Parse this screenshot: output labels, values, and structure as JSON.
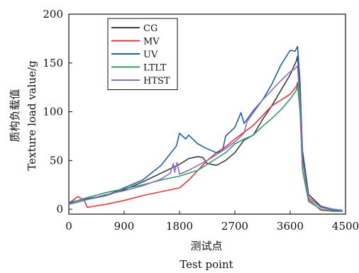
{
  "chart_data": {
    "type": "line",
    "xlabel_cn": "测试点",
    "xlabel": "Test point",
    "ylabel_cn": "质构负载值",
    "ylabel": "Texture load value/g",
    "xlim": [
      0,
      4500
    ],
    "ylim": [
      -5,
      200
    ],
    "xticks": [
      0,
      900,
      1800,
      2700,
      3600,
      4500
    ],
    "yticks": [
      0,
      50,
      100,
      150,
      200
    ],
    "legend_position": "top-left",
    "grid": false,
    "series": [
      {
        "name": "CG",
        "color": "#3a3a3a",
        "points": [
          [
            0,
            5
          ],
          [
            300,
            10
          ],
          [
            600,
            14
          ],
          [
            900,
            20
          ],
          [
            1200,
            28
          ],
          [
            1500,
            37
          ],
          [
            1800,
            46
          ],
          [
            1950,
            52
          ],
          [
            2100,
            54
          ],
          [
            2180,
            53
          ],
          [
            2250,
            47
          ],
          [
            2400,
            45
          ],
          [
            2550,
            50
          ],
          [
            2700,
            58
          ],
          [
            2850,
            71
          ],
          [
            3000,
            76
          ],
          [
            3150,
            92
          ],
          [
            3300,
            106
          ],
          [
            3450,
            122
          ],
          [
            3600,
            138
          ],
          [
            3700,
            152
          ],
          [
            3720,
            157
          ],
          [
            3760,
            125
          ],
          [
            3800,
            60
          ],
          [
            3900,
            15
          ],
          [
            4100,
            3
          ],
          [
            4300,
            0
          ],
          [
            4450,
            -1
          ]
        ]
      },
      {
        "name": "MV",
        "color": "#e8343d",
        "points": [
          [
            0,
            6
          ],
          [
            80,
            10
          ],
          [
            150,
            13
          ],
          [
            250,
            9
          ],
          [
            300,
            2
          ],
          [
            400,
            3
          ],
          [
            600,
            5
          ],
          [
            900,
            9
          ],
          [
            1200,
            14
          ],
          [
            1500,
            18
          ],
          [
            1800,
            22
          ],
          [
            1950,
            30
          ],
          [
            2100,
            40
          ],
          [
            2250,
            50
          ],
          [
            2400,
            58
          ],
          [
            2550,
            64
          ],
          [
            2700,
            72
          ],
          [
            2850,
            79
          ],
          [
            3000,
            86
          ],
          [
            3150,
            96
          ],
          [
            3300,
            106
          ],
          [
            3450,
            112
          ],
          [
            3600,
            118
          ],
          [
            3700,
            126
          ],
          [
            3720,
            130
          ],
          [
            3760,
            105
          ],
          [
            3800,
            50
          ],
          [
            3900,
            10
          ],
          [
            4100,
            -1
          ],
          [
            4300,
            -2
          ],
          [
            4450,
            -2
          ]
        ]
      },
      {
        "name": "UV",
        "color": "#1f5fa8",
        "points": [
          [
            0,
            7
          ],
          [
            300,
            11
          ],
          [
            600,
            14
          ],
          [
            900,
            22
          ],
          [
            1200,
            30
          ],
          [
            1500,
            45
          ],
          [
            1650,
            57
          ],
          [
            1750,
            65
          ],
          [
            1800,
            78
          ],
          [
            1900,
            72
          ],
          [
            1950,
            76
          ],
          [
            2100,
            67
          ],
          [
            2250,
            62
          ],
          [
            2400,
            58
          ],
          [
            2500,
            60
          ],
          [
            2550,
            75
          ],
          [
            2700,
            84
          ],
          [
            2800,
            99
          ],
          [
            2850,
            88
          ],
          [
            3000,
            101
          ],
          [
            3150,
            112
          ],
          [
            3300,
            128
          ],
          [
            3450,
            148
          ],
          [
            3600,
            163
          ],
          [
            3680,
            162
          ],
          [
            3720,
            167
          ],
          [
            3760,
            130
          ],
          [
            3800,
            55
          ],
          [
            3900,
            12
          ],
          [
            4100,
            2
          ],
          [
            4300,
            -1
          ],
          [
            4450,
            -1
          ]
        ]
      },
      {
        "name": "LTLT",
        "color": "#2ea063",
        "points": [
          [
            0,
            6
          ],
          [
            300,
            12
          ],
          [
            600,
            17
          ],
          [
            900,
            21
          ],
          [
            1200,
            25
          ],
          [
            1500,
            30
          ],
          [
            1800,
            34
          ],
          [
            2100,
            40
          ],
          [
            2400,
            52
          ],
          [
            2550,
            58
          ],
          [
            2700,
            67
          ],
          [
            2850,
            72
          ],
          [
            3000,
            76
          ],
          [
            3150,
            85
          ],
          [
            3300,
            93
          ],
          [
            3450,
            102
          ],
          [
            3600,
            113
          ],
          [
            3700,
            122
          ],
          [
            3720,
            128
          ],
          [
            3760,
            100
          ],
          [
            3800,
            40
          ],
          [
            3900,
            8
          ],
          [
            4100,
            0
          ],
          [
            4300,
            -2
          ],
          [
            4450,
            -2
          ]
        ]
      },
      {
        "name": "HTST",
        "color": "#8e6bc1",
        "points": [
          [
            0,
            5
          ],
          [
            300,
            10
          ],
          [
            600,
            15
          ],
          [
            900,
            19
          ],
          [
            1200,
            24
          ],
          [
            1500,
            31
          ],
          [
            1650,
            37
          ],
          [
            1700,
            47
          ],
          [
            1720,
            38
          ],
          [
            1760,
            48
          ],
          [
            1800,
            36
          ],
          [
            1950,
            40
          ],
          [
            2100,
            45
          ],
          [
            2250,
            50
          ],
          [
            2400,
            56
          ],
          [
            2550,
            62
          ],
          [
            2700,
            69
          ],
          [
            2850,
            78
          ],
          [
            2900,
            90
          ],
          [
            3000,
            99
          ],
          [
            3150,
            112
          ],
          [
            3300,
            122
          ],
          [
            3450,
            132
          ],
          [
            3600,
            141
          ],
          [
            3680,
            144
          ],
          [
            3720,
            147
          ],
          [
            3760,
            110
          ],
          [
            3800,
            50
          ],
          [
            3900,
            12
          ],
          [
            4100,
            2
          ],
          [
            4300,
            0
          ],
          [
            4450,
            -1
          ]
        ]
      }
    ]
  }
}
